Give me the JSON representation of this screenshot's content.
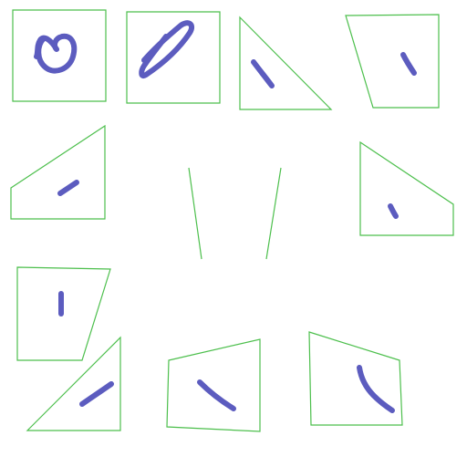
{
  "colors": {
    "background": "#ffffff",
    "frame": "#4cbf4c",
    "ink": "#4a4ab8"
  },
  "figure": {
    "panel_count": 11,
    "panels": [
      {
        "name": "panel-square-loop",
        "shape": "square",
        "stroke": "loop"
      },
      {
        "name": "panel-square-pen-scribble",
        "shape": "square",
        "stroke": "elongated-loop"
      },
      {
        "name": "panel-triangle-diagonal",
        "shape": "triangle",
        "stroke": "diagonal-dash"
      },
      {
        "name": "panel-trapezoid-dash",
        "shape": "trapezoid",
        "stroke": "short-dash"
      },
      {
        "name": "panel-wedge-left-dash",
        "shape": "wedge",
        "stroke": "short-dash"
      },
      {
        "name": "panel-center-lines",
        "shape": "two-lines",
        "stroke": "none"
      },
      {
        "name": "panel-wedge-right-dash",
        "shape": "wedge",
        "stroke": "short-dash"
      },
      {
        "name": "panel-quad-vertical-dash",
        "shape": "quad",
        "stroke": "vertical-dash"
      },
      {
        "name": "panel-triangle-rising-dash",
        "shape": "triangle",
        "stroke": "rising-dash"
      },
      {
        "name": "panel-quad-falling-dash",
        "shape": "quad",
        "stroke": "falling-dash"
      },
      {
        "name": "panel-quad-curve",
        "shape": "quad",
        "stroke": "curve"
      }
    ]
  }
}
